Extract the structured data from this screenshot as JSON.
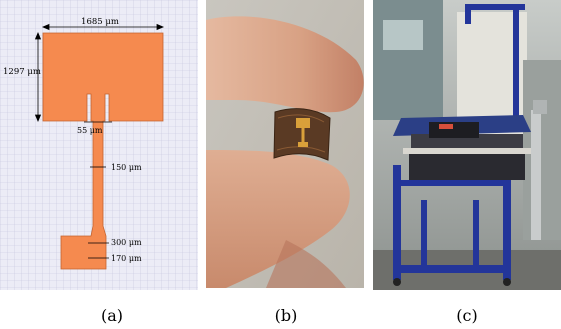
{
  "panels": {
    "a": {
      "caption": "(a)",
      "dimensions": {
        "patch_width": "1685 μm",
        "patch_height": "1297 μm",
        "slot_gap": "55 μm",
        "feed_width": "150 μm",
        "transition_width": "300 μm",
        "port_width": "170 μm"
      },
      "colors": {
        "background": "#ececf6",
        "grid": "#c5c5de",
        "metal": "#f58a4f",
        "outline": "#c4632f"
      }
    },
    "b": {
      "caption": "(b)"
    },
    "c": {
      "caption": "(c)"
    }
  }
}
